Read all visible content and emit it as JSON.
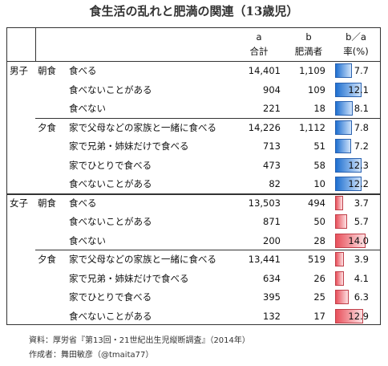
{
  "title": "食生活の乱れと肥満の関連（13歳児）",
  "header": {
    "a": "a",
    "b": "b",
    "ratio": "b／a",
    "total": "合計",
    "obese": "肥満者",
    "rate": "率(%)"
  },
  "groups": [
    {
      "sex": "男子",
      "meals": [
        {
          "meal": "朝食",
          "rows": [
            {
              "label": "食べる",
              "total": "14,401",
              "obese": "1,109",
              "rate": "7.7"
            },
            {
              "label": "食べないことがある",
              "total": "904",
              "obese": "109",
              "rate": "12.1"
            },
            {
              "label": "食べない",
              "total": "221",
              "obese": "18",
              "rate": "8.1"
            }
          ]
        },
        {
          "meal": "夕食",
          "rows": [
            {
              "label": "家で父母などの家族と一緒に食べる",
              "total": "14,226",
              "obese": "1,112",
              "rate": "7.8"
            },
            {
              "label": "家で兄弟・姉妹だけで食べる",
              "total": "713",
              "obese": "51",
              "rate": "7.2"
            },
            {
              "label": "家でひとりで食べる",
              "total": "473",
              "obese": "58",
              "rate": "12.3"
            },
            {
              "label": "食べないことがある",
              "total": "82",
              "obese": "10",
              "rate": "12.2"
            }
          ]
        }
      ]
    },
    {
      "sex": "女子",
      "meals": [
        {
          "meal": "朝食",
          "rows": [
            {
              "label": "食べる",
              "total": "13,503",
              "obese": "494",
              "rate": "3.7"
            },
            {
              "label": "食べないことがある",
              "total": "871",
              "obese": "50",
              "rate": "5.7"
            },
            {
              "label": "食べない",
              "total": "200",
              "obese": "28",
              "rate": "14.0"
            }
          ]
        },
        {
          "meal": "夕食",
          "rows": [
            {
              "label": "家で父母などの家族と一緒に食べる",
              "total": "13,441",
              "obese": "519",
              "rate": "3.9"
            },
            {
              "label": "家で兄弟・姉妹だけで食べる",
              "total": "634",
              "obese": "26",
              "rate": "4.1"
            },
            {
              "label": "家でひとりで食べる",
              "total": "395",
              "obese": "25",
              "rate": "6.3"
            },
            {
              "label": "食べないことがある",
              "total": "132",
              "obese": "17",
              "rate": "12.9"
            }
          ]
        }
      ]
    }
  ],
  "source": "資料：厚労省『第13回・21世紀出生児縦断調査』（2014年）",
  "author": "作成者：舞田敏彦（@tmaita77）"
}
